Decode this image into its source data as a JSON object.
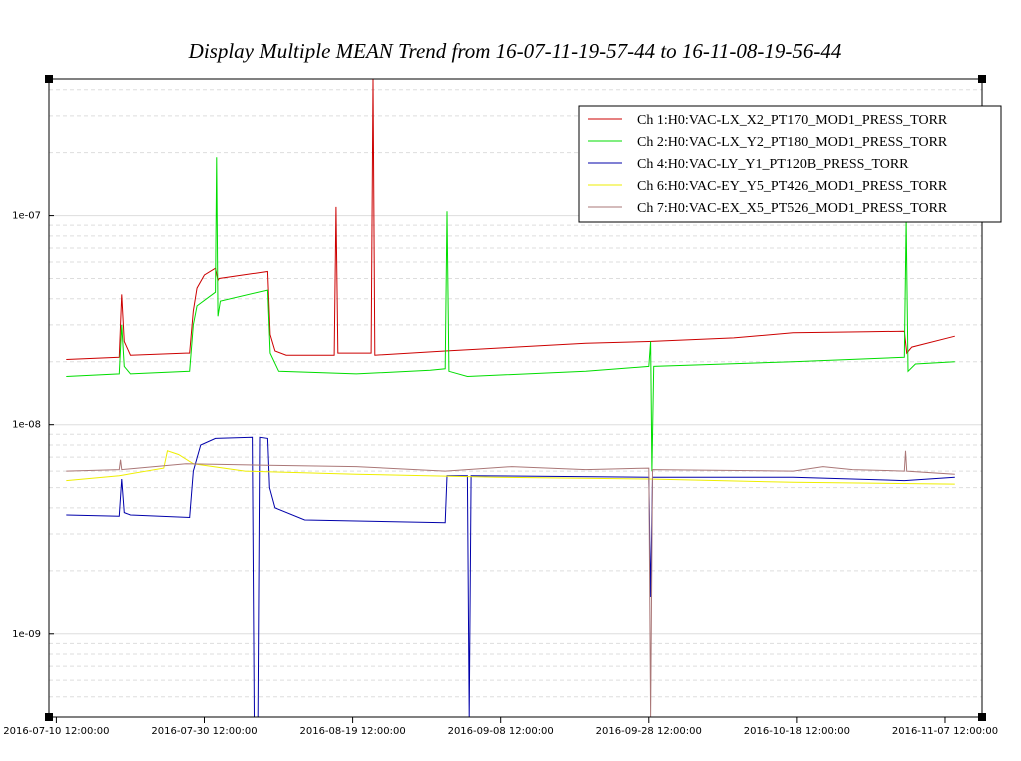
{
  "chart_data": {
    "type": "line",
    "title": "Display Multiple MEAN Trend from 16-07-11-19-57-44 to 16-11-08-19-56-44",
    "y_scale": "log",
    "x_range": [
      "2016-07-09T12:00:00",
      "2016-11-12T12:00:00"
    ],
    "y_range": [
      4e-10,
      4.5e-07
    ],
    "x_ticks": [
      {
        "t": "2016-07-10T12:00:00",
        "label": "2016-07-10 12:00:00"
      },
      {
        "t": "2016-07-30T12:00:00",
        "label": "2016-07-30 12:00:00"
      },
      {
        "t": "2016-08-19T12:00:00",
        "label": "2016-08-19 12:00:00"
      },
      {
        "t": "2016-09-08T12:00:00",
        "label": "2016-09-08 12:00:00"
      },
      {
        "t": "2016-09-28T12:00:00",
        "label": "2016-09-28 12:00:00"
      },
      {
        "t": "2016-10-18T12:00:00",
        "label": "2016-10-18 12:00:00"
      },
      {
        "t": "2016-11-07T12:00:00",
        "label": "2016-11-07 12:00:00"
      }
    ],
    "y_ticks": [
      {
        "v": 1e-07,
        "label": "1e-07"
      },
      {
        "v": 1e-08,
        "label": "1e-08"
      },
      {
        "v": 1e-09,
        "label": "1e-09"
      }
    ],
    "grid": true,
    "legend_position": "top-right",
    "series": [
      {
        "name": "Ch 1:H0:VAC-LX_X2_PT170_MOD1_PRESS_TORR",
        "color": "#cc0000",
        "points": [
          [
            "2016-07-11T19:57",
            2.05e-08
          ],
          [
            "2016-07-19T00:00",
            2.1e-08
          ],
          [
            "2016-07-19T08:00",
            4.2e-08
          ],
          [
            "2016-07-19T16:00",
            2.5e-08
          ],
          [
            "2016-07-20T12:00",
            2.15e-08
          ],
          [
            "2016-07-28T00:00",
            2.2e-08
          ],
          [
            "2016-07-28T12:00",
            2.2e-08
          ],
          [
            "2016-07-29T00:00",
            3.5e-08
          ],
          [
            "2016-07-29T12:00",
            4.5e-08
          ],
          [
            "2016-07-30T12:00",
            5.2e-08
          ],
          [
            "2016-08-01T00:00",
            5.6e-08
          ],
          [
            "2016-08-01T08:00",
            4.9e-08
          ],
          [
            "2016-08-01T12:00",
            5e-08
          ],
          [
            "2016-08-08T00:00",
            5.4e-08
          ],
          [
            "2016-08-08T08:00",
            2.7e-08
          ],
          [
            "2016-08-09T00:00",
            2.25e-08
          ],
          [
            "2016-08-10T12:00",
            2.15e-08
          ],
          [
            "2016-08-17T00:00",
            2.15e-08
          ],
          [
            "2016-08-17T06:00",
            1.1e-07
          ],
          [
            "2016-08-17T12:00",
            2.2e-08
          ],
          [
            "2016-08-22T00:00",
            2.2e-08
          ],
          [
            "2016-08-22T06:00",
            4.5e-07
          ],
          [
            "2016-08-22T12:00",
            2.15e-08
          ],
          [
            "2016-09-01T00:00",
            2.25e-08
          ],
          [
            "2016-09-20T00:00",
            2.45e-08
          ],
          [
            "2016-09-28T12:00",
            2.5e-08
          ],
          [
            "2016-10-10T00:00",
            2.6e-08
          ],
          [
            "2016-10-18T00:00",
            2.75e-08
          ],
          [
            "2016-10-28T00:00",
            2.78e-08
          ],
          [
            "2016-11-02T00:00",
            2.8e-08
          ],
          [
            "2016-11-02T08:00",
            2.2e-08
          ],
          [
            "2016-11-03T00:00",
            2.35e-08
          ],
          [
            "2016-11-08T19:56",
            2.65e-08
          ]
        ]
      },
      {
        "name": "Ch 2:H0:VAC-LX_Y2_PT180_MOD1_PRESS_TORR",
        "color": "#00dd00",
        "points": [
          [
            "2016-07-11T19:57",
            1.7e-08
          ],
          [
            "2016-07-19T00:00",
            1.75e-08
          ],
          [
            "2016-07-19T08:00",
            3e-08
          ],
          [
            "2016-07-19T16:00",
            1.9e-08
          ],
          [
            "2016-07-20T12:00",
            1.75e-08
          ],
          [
            "2016-07-28T12:00",
            1.8e-08
          ],
          [
            "2016-07-29T00:00",
            3e-08
          ],
          [
            "2016-07-29T12:00",
            3.7e-08
          ],
          [
            "2016-08-01T00:00",
            4.3e-08
          ],
          [
            "2016-08-01T04:00",
            1.9e-07
          ],
          [
            "2016-08-01T08:00",
            3.3e-08
          ],
          [
            "2016-08-01T16:00",
            3.9e-08
          ],
          [
            "2016-08-08T00:00",
            4.4e-08
          ],
          [
            "2016-08-08T08:00",
            2.2e-08
          ],
          [
            "2016-08-09T12:00",
            1.8e-08
          ],
          [
            "2016-08-20T00:00",
            1.75e-08
          ],
          [
            "2016-08-30T00:00",
            1.82e-08
          ],
          [
            "2016-09-01T00:00",
            1.85e-08
          ],
          [
            "2016-09-01T06:00",
            1.05e-07
          ],
          [
            "2016-09-01T12:00",
            1.8e-08
          ],
          [
            "2016-09-04T00:00",
            1.7e-08
          ],
          [
            "2016-09-20T00:00",
            1.8e-08
          ],
          [
            "2016-09-28T12:00",
            1.9e-08
          ],
          [
            "2016-09-28T18:00",
            2.5e-08
          ],
          [
            "2016-09-28T22:00",
            6e-09
          ],
          [
            "2016-09-29T04:00",
            1.9e-08
          ],
          [
            "2016-10-18T00:00",
            2e-08
          ],
          [
            "2016-11-02T00:00",
            2.1e-08
          ],
          [
            "2016-11-02T06:00",
            9.5e-08
          ],
          [
            "2016-11-02T12:00",
            1.8e-08
          ],
          [
            "2016-11-03T12:00",
            1.95e-08
          ],
          [
            "2016-11-08T19:56",
            2e-08
          ]
        ]
      },
      {
        "name": "Ch 4:H0:VAC-LY_Y1_PT120B_PRESS_TORR",
        "color": "#0000aa",
        "points": [
          [
            "2016-07-11T19:57",
            3.7e-09
          ],
          [
            "2016-07-19T00:00",
            3.65e-09
          ],
          [
            "2016-07-19T08:00",
            5.5e-09
          ],
          [
            "2016-07-19T16:00",
            3.8e-09
          ],
          [
            "2016-07-20T12:00",
            3.7e-09
          ],
          [
            "2016-07-28T12:00",
            3.6e-09
          ],
          [
            "2016-07-29T00:00",
            6e-09
          ],
          [
            "2016-07-30T00:00",
            8e-09
          ],
          [
            "2016-08-01T00:00",
            8.6e-09
          ],
          [
            "2016-08-06T00:00",
            8.7e-09
          ],
          [
            "2016-08-06T06:00",
            3.5e-10
          ],
          [
            "2016-08-06T18:00",
            3.5e-10
          ],
          [
            "2016-08-07T00:00",
            8.7e-09
          ],
          [
            "2016-08-08T00:00",
            8.6e-09
          ],
          [
            "2016-08-08T06:00",
            5e-09
          ],
          [
            "2016-08-09T00:00",
            4e-09
          ],
          [
            "2016-08-13T00:00",
            3.5e-09
          ],
          [
            "2016-09-01T00:00",
            3.4e-09
          ],
          [
            "2016-09-01T06:00",
            5.7e-09
          ],
          [
            "2016-09-04T00:00",
            5.7e-09
          ],
          [
            "2016-09-04T06:00",
            3.5e-10
          ],
          [
            "2016-09-04T12:00",
            5.7e-09
          ],
          [
            "2016-09-28T12:00",
            5.6e-09
          ],
          [
            "2016-09-28T18:00",
            1.5e-09
          ],
          [
            "2016-09-29T00:00",
            5.6e-09
          ],
          [
            "2016-10-18T00:00",
            5.6e-09
          ],
          [
            "2016-11-02T00:00",
            5.4e-09
          ],
          [
            "2016-11-08T19:56",
            5.6e-09
          ]
        ]
      },
      {
        "name": "Ch 6:H0:VAC-EY_Y5_PT426_MOD1_PRESS_TORR",
        "color": "#eeee00",
        "points": [
          [
            "2016-07-11T19:57",
            5.4e-09
          ],
          [
            "2016-07-19T00:00",
            5.7e-09
          ],
          [
            "2016-07-25T00:00",
            6.2e-09
          ],
          [
            "2016-07-25T12:00",
            7.5e-09
          ],
          [
            "2016-07-27T00:00",
            7.2e-09
          ],
          [
            "2016-07-29T00:00",
            6.5e-09
          ],
          [
            "2016-08-05T00:00",
            6e-09
          ],
          [
            "2016-08-20T00:00",
            5.8e-09
          ],
          [
            "2016-09-08T00:00",
            5.6e-09
          ],
          [
            "2016-09-28T12:00",
            5.5e-09
          ],
          [
            "2016-10-18T00:00",
            5.3e-09
          ],
          [
            "2016-11-08T19:56",
            5.2e-09
          ]
        ]
      },
      {
        "name": "Ch 7:H0:VAC-EX_X5_PT526_MOD1_PRESS_TORR",
        "color": "#aa7777",
        "points": [
          [
            "2016-07-11T19:57",
            6e-09
          ],
          [
            "2016-07-19T00:00",
            6.1e-09
          ],
          [
            "2016-07-19T04:00",
            6.8e-09
          ],
          [
            "2016-07-19T08:00",
            6.1e-09
          ],
          [
            "2016-07-28T00:00",
            6.5e-09
          ],
          [
            "2016-08-08T00:00",
            6.4e-09
          ],
          [
            "2016-08-20T00:00",
            6.3e-09
          ],
          [
            "2016-09-01T00:00",
            6e-09
          ],
          [
            "2016-09-10T00:00",
            6.3e-09
          ],
          [
            "2016-09-20T00:00",
            6.1e-09
          ],
          [
            "2016-09-28T12:00",
            6.2e-09
          ],
          [
            "2016-09-28T18:00",
            3.5e-10
          ],
          [
            "2016-09-29T00:00",
            6.1e-09
          ],
          [
            "2016-10-18T00:00",
            6e-09
          ],
          [
            "2016-10-22T00:00",
            6.3e-09
          ],
          [
            "2016-10-26T00:00",
            6.1e-09
          ],
          [
            "2016-11-02T00:00",
            6e-09
          ],
          [
            "2016-11-02T04:00",
            7.5e-09
          ],
          [
            "2016-11-02T08:00",
            6e-09
          ],
          [
            "2016-11-08T19:56",
            5.8e-09
          ]
        ]
      }
    ]
  }
}
